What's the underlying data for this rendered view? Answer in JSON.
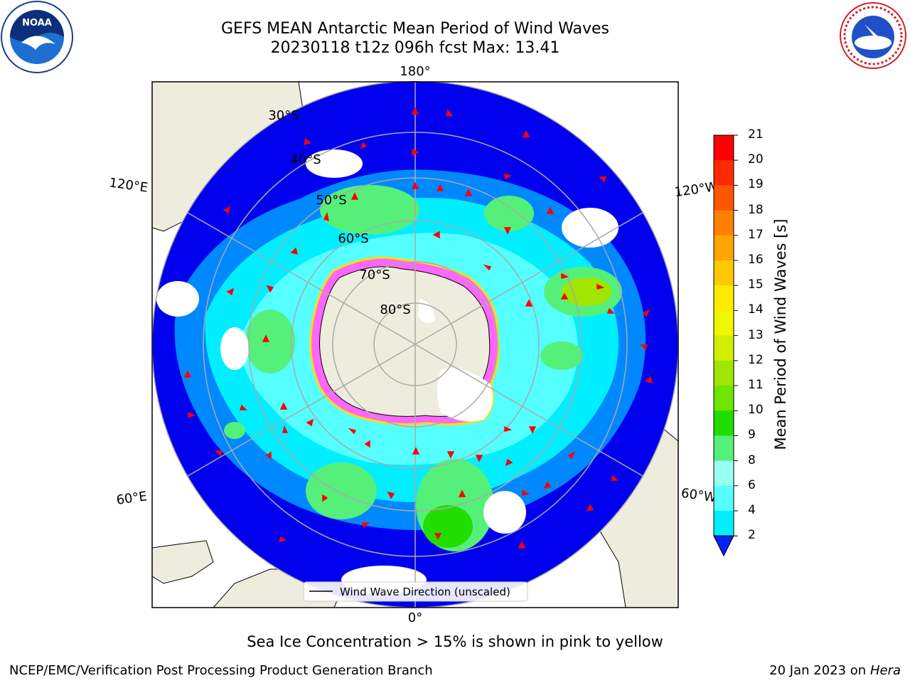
{
  "header": {
    "title_line1": "GEFS MEAN Antarctic Mean Period of Wind Waves",
    "title_line2": "20230118 t12z 096h fcst   Max: 13.41"
  },
  "logos": {
    "left": "NOAA",
    "left_ring": "NATIONAL OCEANIC AND ATMOSPHERIC ADMINISTRATION · U.S. DEPARTMENT OF COMMERCE",
    "right_ring": "NATIONAL WEATHER SERVICE"
  },
  "map": {
    "lon_labels": {
      "top": "180°",
      "bottom": "0°",
      "upper_left": "120°E",
      "upper_right": "120°W",
      "lower_left": "60°E",
      "lower_right": "60°W"
    },
    "lat_labels": [
      "30°S",
      "40°S",
      "50°S",
      "60°S",
      "70°S",
      "80°S"
    ],
    "legend_label": "Wind Wave Direction (unscaled)",
    "colors": {
      "ocean_dark": "#0000ee",
      "land": "#eeecdc",
      "ice": "#ff44ff"
    }
  },
  "colorbar": {
    "label": "Mean Period of Wind Waves [s]",
    "ticks": [
      "21",
      "20",
      "19",
      "18",
      "17",
      "16",
      "15",
      "14",
      "13",
      "12",
      "11",
      "10",
      "9",
      "8",
      "6",
      "4",
      "2"
    ],
    "colors": [
      "#ff0000",
      "#ff2a00",
      "#ff5500",
      "#ff8000",
      "#ffa400",
      "#ffc800",
      "#ffeb00",
      "#f0f500",
      "#d0ef00",
      "#a0e600",
      "#6ee600",
      "#22dd00",
      "#55f07a",
      "#99fff0",
      "#55ffff",
      "#00eeff",
      "#0088ff"
    ],
    "under_color": "#0022ff"
  },
  "subtitle": "Sea Ice Concentration > 15% is shown in pink to yellow",
  "footer": {
    "left": "NCEP/EMC/Verification Post Processing Product Generation Branch",
    "right_date": "20 Jan 2023 on ",
    "right_host": "Hera"
  }
}
